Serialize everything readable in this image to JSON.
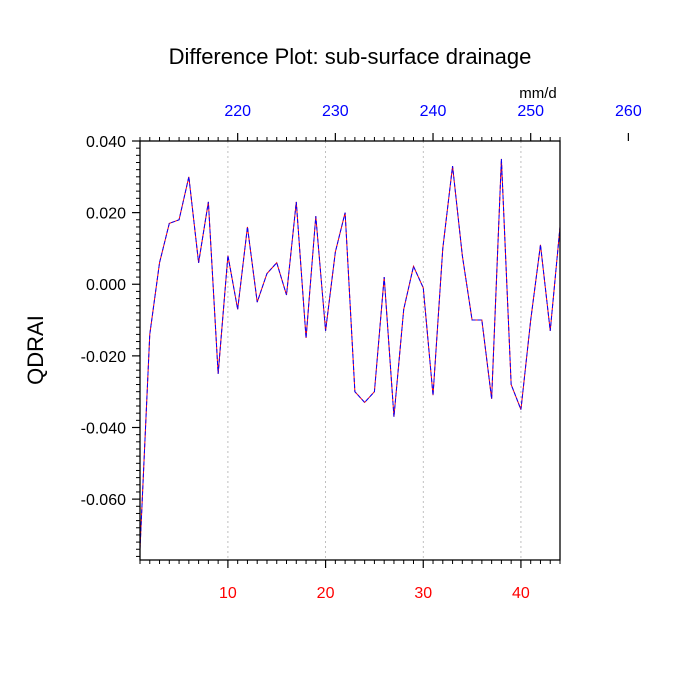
{
  "chart_data": {
    "type": "line",
    "title": "Difference Plot: sub-surface drainage",
    "ylabel": "QDRAI",
    "units": "mm/d",
    "xlim": [
      1,
      44
    ],
    "ylim": [
      -0.077,
      0.04
    ],
    "bottom_ticks": [
      10,
      20,
      30,
      40
    ],
    "bottom_tick_labels": [
      "10",
      "20",
      "30",
      "40"
    ],
    "top_ticks": [
      220,
      230,
      240,
      250,
      260
    ],
    "top_tick_labels": [
      "220",
      "230",
      "240",
      "250",
      "260"
    ],
    "top_axis_offset": 209,
    "y_ticks": [
      0.04,
      0.02,
      0.0,
      -0.02,
      -0.04,
      -0.06
    ],
    "y_tick_labels": [
      "0.040",
      "0.020",
      "0.000",
      "-0.020",
      "-0.040",
      "-0.060"
    ],
    "grid": "vertical dashed at bottom ticks",
    "colors": {
      "series_a": "#0000ff",
      "series_b": "#ff0000",
      "bottom_ticks": "#ff0000",
      "top_ticks": "#0000ff",
      "axis": "#000000",
      "grid": "#b0b0b0"
    },
    "x": [
      1,
      2,
      3,
      4,
      5,
      6,
      7,
      8,
      9,
      10,
      11,
      12,
      13,
      14,
      15,
      16,
      17,
      18,
      19,
      20,
      21,
      22,
      23,
      24,
      25,
      26,
      27,
      28,
      29,
      30,
      31,
      32,
      33,
      34,
      35,
      36,
      37,
      38,
      39,
      40,
      41,
      42,
      43,
      44
    ],
    "series": [
      {
        "values": [
          -0.074,
          -0.014,
          0.006,
          0.017,
          0.018,
          0.03,
          0.006,
          0.023,
          -0.025,
          0.008,
          -0.007,
          0.016,
          -0.005,
          0.003,
          0.006,
          -0.003,
          0.023,
          -0.015,
          0.019,
          -0.013,
          0.009,
          0.02,
          -0.03,
          -0.033,
          -0.03,
          0.002,
          -0.037,
          -0.007,
          0.005,
          -0.001,
          -0.031,
          0.01,
          0.033,
          0.008,
          -0.01,
          -0.01,
          -0.032,
          0.035,
          -0.028,
          -0.035,
          -0.01,
          0.011,
          -0.013,
          0.016
        ]
      }
    ]
  }
}
